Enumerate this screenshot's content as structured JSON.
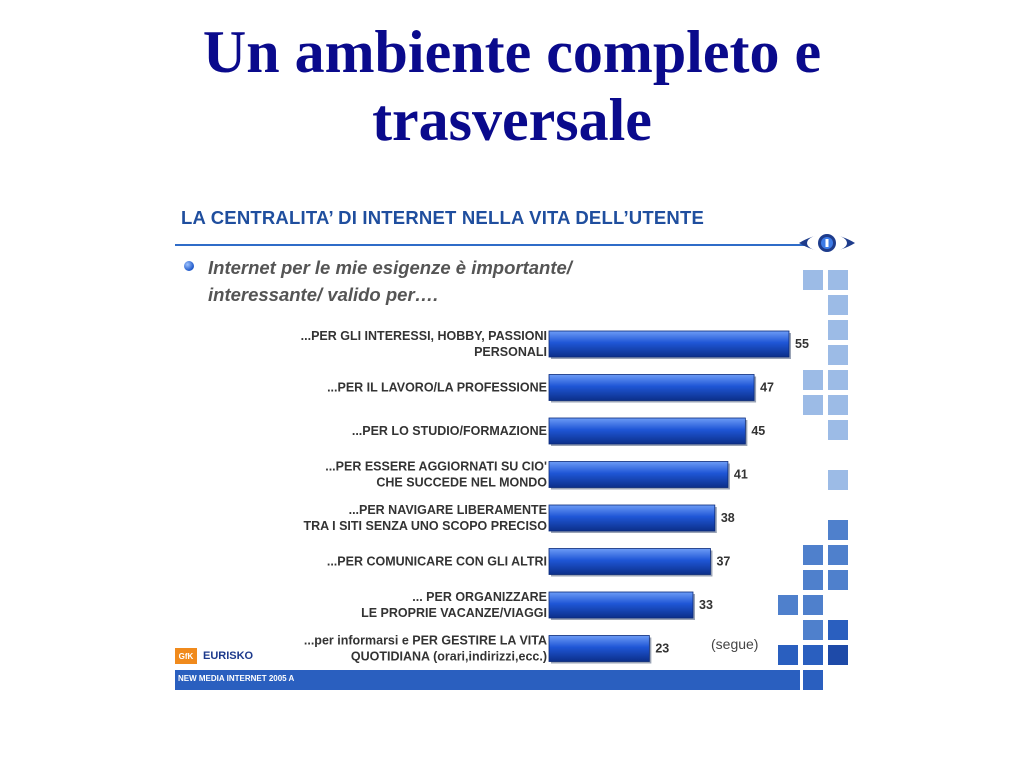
{
  "slide": {
    "title_line1": "Un ambiente completo e",
    "title_line2": "trasversale"
  },
  "panel": {
    "heading": "LA CENTRALITA’ DI INTERNET NELLA VITA DELL’UTENTE",
    "subtitle_line1": "Internet per le mie esigenze è importante/",
    "subtitle_line2": "interessante/ valido per….",
    "note": "(segue)",
    "brand_logo": "GfK",
    "brand_name": "EURISKO",
    "footer": "NEW MEDIA INTERNET 2005 A"
  },
  "chart_data": {
    "type": "bar",
    "orientation": "horizontal",
    "title": "LA CENTRALITA’ DI INTERNET NELLA VITA DELL’UTENTE",
    "subtitle": "Internet per le mie esigenze è importante/ interessante/ valido per….",
    "categories": [
      [
        "...PER GLI INTERESSI, HOBBY, PASSIONI",
        "PERSONALI"
      ],
      [
        "...PER IL LAVORO/LA PROFESSIONE"
      ],
      [
        "...PER LO STUDIO/FORMAZIONE"
      ],
      [
        "...PER ESSERE AGGIORNATI SU CIO'",
        "CHE SUCCEDE NEL MONDO"
      ],
      [
        "...PER NAVIGARE LIBERAMENTE",
        "TRA I SITI SENZA UNO SCOPO PRECISO"
      ],
      [
        "...PER COMUNICARE CON GLI ALTRI"
      ],
      [
        "... PER ORGANIZZARE",
        "LE PROPRIE VACANZE/VIAGGI"
      ],
      [
        "...per informarsi e PER GESTIRE LA VITA",
        "QUOTIDIANA (orari,indirizzi,ecc.)"
      ]
    ],
    "values": [
      55,
      47,
      45,
      41,
      38,
      37,
      33,
      23
    ],
    "xlim": [
      0,
      55
    ],
    "grid": false,
    "bar_color": "#1f56d6"
  }
}
